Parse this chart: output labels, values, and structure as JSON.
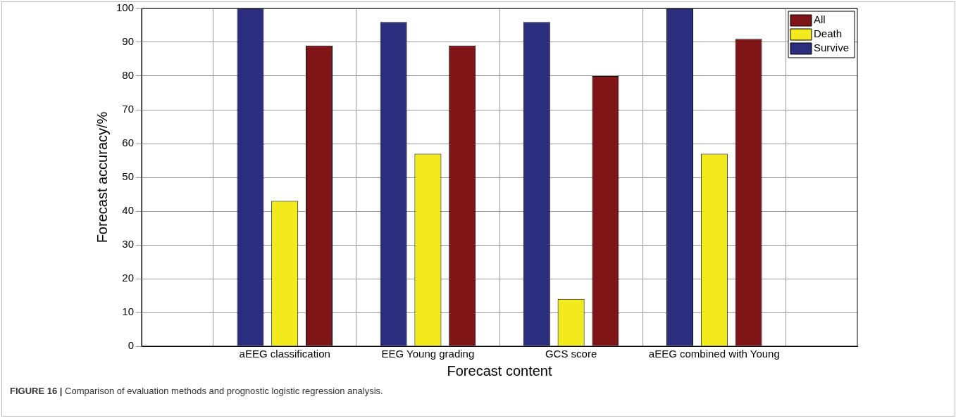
{
  "chart_data": {
    "type": "bar",
    "categories": [
      null,
      "aEEG classification",
      "EEG Young grading",
      "GCS score",
      "aEEG combined with Young",
      null
    ],
    "series": [
      {
        "name": "Survive",
        "color": "#2b2e7f",
        "values": [
          null,
          100,
          96,
          96,
          100,
          null
        ]
      },
      {
        "name": "Death",
        "color": "#f2ea1c",
        "values": [
          null,
          43,
          57,
          14,
          57,
          null
        ]
      },
      {
        "name": "All",
        "color": "#801517",
        "values": [
          null,
          89,
          89,
          80,
          91,
          null
        ]
      }
    ],
    "xlabel": "Forecast content",
    "ylabel": "Forecast accuracy/%",
    "ylim": [
      0,
      100
    ],
    "yticks": [
      0,
      10,
      20,
      30,
      40,
      50,
      60,
      70,
      80,
      90,
      100
    ],
    "grid": true,
    "legend": "top right",
    "annotations": [
      "FIGURE 16 | Comparison of evaluation methods and prognostic logistic regression analysis."
    ]
  }
}
